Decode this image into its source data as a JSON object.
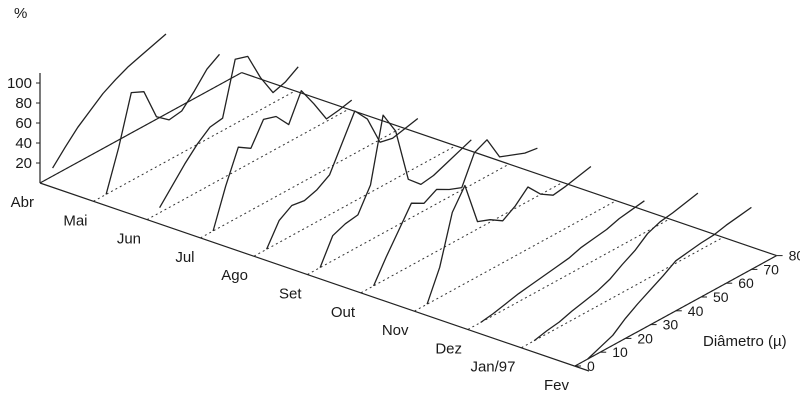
{
  "chart_data": {
    "type": "line",
    "title": "",
    "z_axis_label": "%",
    "z_ticks": [
      "20",
      "40",
      "60",
      "80",
      "100"
    ],
    "z_range": [
      0,
      110
    ],
    "x_axis_label": "Diâmetro (µ)",
    "x_ticks": [
      "0",
      "10",
      "20",
      "30",
      "40",
      "50",
      "60",
      "70",
      "80"
    ],
    "x_range": [
      0,
      80
    ],
    "categories": [
      "Abr",
      "Mai",
      "Jun",
      "Jul",
      "Ago",
      "Set",
      "Out",
      "Nov",
      "Dez",
      "Jan/97",
      "Fev"
    ],
    "x": [
      5,
      10,
      15,
      20,
      25,
      30,
      35,
      40,
      45,
      50,
      55,
      60,
      65,
      70
    ],
    "series": [
      {
        "values": [
          8,
          22,
          35,
          45,
          55,
          62,
          68,
          72,
          76,
          80,
          null,
          null,
          null,
          null
        ]
      },
      {
        "values": [
          0,
          40,
          88,
          82,
          50,
          40,
          42,
          55,
          70,
          78,
          null,
          null,
          null,
          null
        ]
      },
      {
        "values": [
          5,
          20,
          35,
          48,
          58,
          60,
          112,
          108,
          80,
          58,
          62,
          70,
          null,
          null
        ]
      },
      {
        "values": [
          0,
          38,
          70,
          62,
          84,
          80,
          65,
          92,
          72,
          50,
          52,
          55,
          null,
          null
        ]
      },
      {
        "values": [
          0,
          22,
          30,
          28,
          32,
          40,
          65,
          90,
          75,
          45,
          42,
          45,
          48,
          null
        ]
      },
      {
        "values": [
          0,
          25,
          30,
          32,
          55,
          118,
          95,
          40,
          28,
          30,
          35,
          40,
          45,
          null
        ]
      },
      {
        "values": [
          0,
          22,
          42,
          62,
          55,
          62,
          55,
          50,
          78,
          84,
          60,
          55,
          50,
          48
        ]
      },
      {
        "values": [
          0,
          30,
          78,
          98,
          55,
          50,
          42,
          50,
          62,
          48,
          40,
          42,
          45,
          48
        ]
      },
      {
        "values": [
          0,
          2,
          5,
          8,
          10,
          12,
          14,
          16,
          20,
          22,
          24,
          28,
          30,
          32
        ]
      },
      {
        "values": [
          0,
          3,
          5,
          9,
          12,
          15,
          20,
          28,
          35,
          45,
          50,
          52,
          55,
          58
        ]
      },
      {
        "values": [
          0,
          5,
          10,
          20,
          28,
          35,
          42,
          50,
          52,
          54,
          55,
          58,
          60,
          62
        ]
      }
    ]
  }
}
